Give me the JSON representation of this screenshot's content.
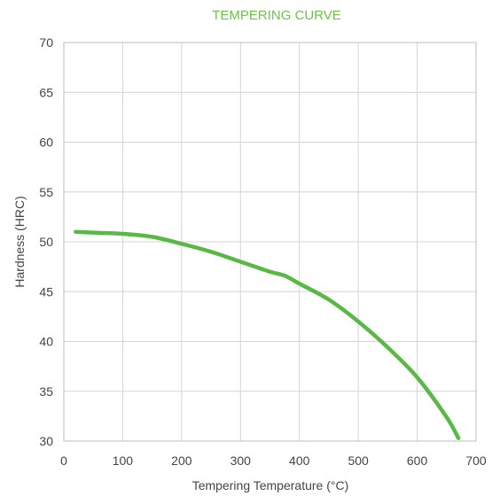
{
  "chart_data": {
    "type": "line",
    "title": "TEMPERING CURVE",
    "xlabel": "Tempering Temperature (°C)",
    "ylabel": "Hardness (HRC)",
    "xlim": [
      0,
      700
    ],
    "ylim": [
      30,
      70
    ],
    "xticks": [
      0,
      100,
      200,
      300,
      400,
      500,
      600,
      700
    ],
    "yticks": [
      30,
      35,
      40,
      45,
      50,
      55,
      60,
      65,
      70
    ],
    "grid": true,
    "series": [
      {
        "color": "#5ab946",
        "x": [
          20,
          60,
          100,
          150,
          200,
          250,
          300,
          350,
          375,
          400,
          450,
          500,
          550,
          600,
          650,
          670
        ],
        "y": [
          51,
          50.9,
          50.8,
          50.5,
          49.8,
          49.0,
          48.0,
          47.0,
          46.6,
          45.8,
          44.2,
          42.0,
          39.4,
          36.4,
          32.4,
          30.3
        ]
      }
    ]
  }
}
